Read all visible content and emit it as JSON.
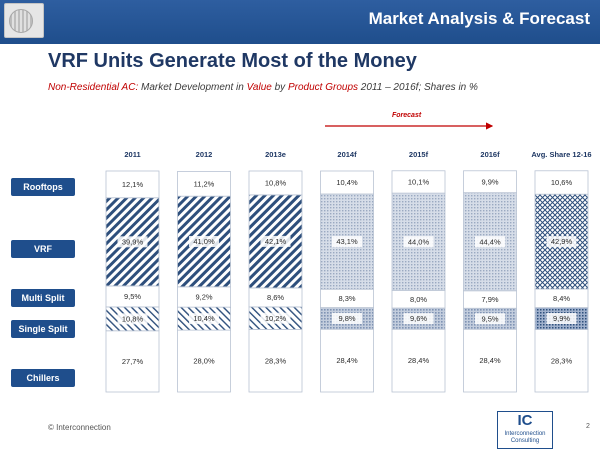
{
  "header": {
    "title": "Market Analysis & Forecast"
  },
  "page": {
    "title": "VRF Units Generate Most of the Money",
    "subtitle_parts": [
      {
        "text": "Non-Residential AC:",
        "style": "red"
      },
      {
        "text": " Market Development in ",
        "style": "plain"
      },
      {
        "text": "Value",
        "style": "red"
      },
      {
        "text": " by ",
        "style": "plain"
      },
      {
        "text": "Product Groups",
        "style": "red"
      },
      {
        "text": "  2011 – 2016f; Shares in %",
        "style": "plain"
      }
    ],
    "forecast_label": "Forecast",
    "copyright": "© Interconnection",
    "page_number": "2",
    "logo": {
      "mark": "IC",
      "line1": "Interconnection",
      "line2": "Consulting"
    }
  },
  "chart_data": {
    "type": "bar",
    "stacked": true,
    "percent": true,
    "categories": [
      "2011",
      "2012",
      "2013e",
      "2014f",
      "2015f",
      "2016f",
      "Avg. Share 12-16"
    ],
    "series": [
      {
        "name": "Chillers",
        "values": [
          27.7,
          28.0,
          28.3,
          28.4,
          28.4,
          28.4,
          28.3
        ],
        "labels": [
          "27,7%",
          "28,0%",
          "28,3%",
          "28,4%",
          "28,4%",
          "28,4%",
          "28,3%"
        ]
      },
      {
        "name": "Single Split",
        "values": [
          10.8,
          10.4,
          10.2,
          9.8,
          9.6,
          9.5,
          9.9
        ],
        "labels": [
          "10,8%",
          "10,4%",
          "10,2%",
          "9,8%",
          "9,6%",
          "9,5%",
          "9,9%"
        ]
      },
      {
        "name": "Multi Split",
        "values": [
          9.5,
          9.2,
          8.6,
          8.3,
          8.0,
          7.9,
          8.4
        ],
        "labels": [
          "9,5%",
          "9,2%",
          "8,6%",
          "8,3%",
          "8,0%",
          "7,9%",
          "8,4%"
        ]
      },
      {
        "name": "VRF",
        "values": [
          39.9,
          41.0,
          42.1,
          43.1,
          44.0,
          44.4,
          42.9
        ],
        "labels": [
          "39,9%",
          "41,0%",
          "42,1%",
          "43,1%",
          "44,0%",
          "44,4%",
          "42,9%"
        ]
      },
      {
        "name": "Rooftops",
        "values": [
          12.1,
          11.2,
          10.8,
          10.4,
          10.1,
          9.9,
          10.6
        ],
        "labels": [
          "12,1%",
          "11,2%",
          "10,8%",
          "10,4%",
          "10,1%",
          "9,9%",
          "10,6%"
        ]
      }
    ],
    "legend_order_top_to_bottom": [
      "Rooftops",
      "VRF",
      "Multi Split",
      "Single Split",
      "Chillers"
    ],
    "forecast_from": "2014f",
    "ylim": [
      0,
      100
    ],
    "colors": {
      "accent": "#1f4e8c",
      "forecast": "#c00000",
      "forecast_fill": "#c9d3e1",
      "history_stripe": "#2e4f7c"
    }
  }
}
